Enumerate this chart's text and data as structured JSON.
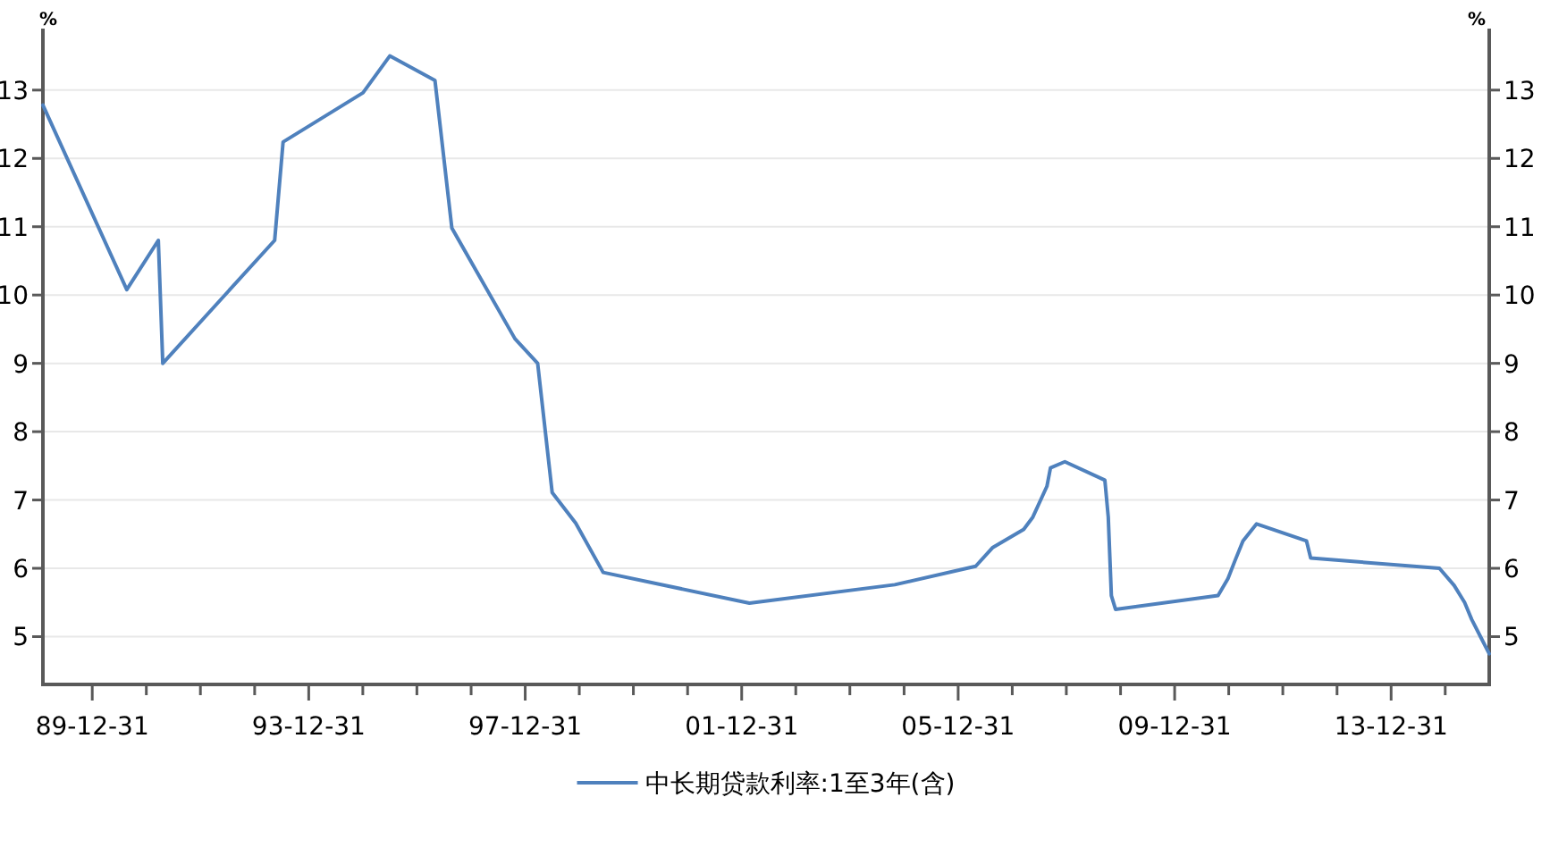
{
  "chart_data": {
    "type": "line",
    "ylabel": "%",
    "y2label": "%",
    "x": [
      "1989-02-01",
      "1990-08-21",
      "1991-03-22",
      "1991-04-21",
      "1993-05-15",
      "1993-07-11",
      "1995-01-01",
      "1995-07-01",
      "1996-05-01",
      "1996-08-23",
      "1997-10-23",
      "1998-03-25",
      "1998-07-01",
      "1998-12-07",
      "1999-06-10",
      "2002-02-21",
      "2004-10-29",
      "2006-04-28",
      "2006-08-19",
      "2007-03-18",
      "2007-05-19",
      "2007-08-22",
      "2007-09-15",
      "2007-12-21",
      "2008-09-16",
      "2008-10-09",
      "2008-10-30",
      "2008-11-27",
      "2010-10-20",
      "2010-12-26",
      "2011-02-09",
      "2011-04-06",
      "2011-07-07",
      "2012-06-08",
      "2012-07-06",
      "2014-11-22",
      "2015-03-01",
      "2015-05-11",
      "2015-06-28",
      "2015-08-26",
      "2015-10-24"
    ],
    "series": [
      {
        "name": "中长期贷款利率:1至3年(含)",
        "color": "#4f81bd",
        "values": [
          12.78,
          10.08,
          10.8,
          9.0,
          10.8,
          12.24,
          12.96,
          13.5,
          13.14,
          10.98,
          9.36,
          9.0,
          7.11,
          6.66,
          5.94,
          5.49,
          5.76,
          6.03,
          6.3,
          6.57,
          6.75,
          7.2,
          7.47,
          7.56,
          7.29,
          6.75,
          5.6,
          5.4,
          5.6,
          5.85,
          6.1,
          6.4,
          6.65,
          6.4,
          6.15,
          6.0,
          5.75,
          5.5,
          5.25,
          5.0,
          4.75
        ]
      }
    ],
    "xlim": [
      "1989-02-01",
      "2015-10-24"
    ],
    "xticks": [
      {
        "value": "1989-12-31",
        "label": "89-12-31"
      },
      {
        "value": "1990-12-31",
        "label": null
      },
      {
        "value": "1991-12-31",
        "label": null
      },
      {
        "value": "1992-12-31",
        "label": null
      },
      {
        "value": "1993-12-31",
        "label": "93-12-31"
      },
      {
        "value": "1994-12-31",
        "label": null
      },
      {
        "value": "1995-12-31",
        "label": null
      },
      {
        "value": "1996-12-31",
        "label": null
      },
      {
        "value": "1997-12-31",
        "label": "97-12-31"
      },
      {
        "value": "1998-12-31",
        "label": null
      },
      {
        "value": "1999-12-31",
        "label": null
      },
      {
        "value": "2000-12-31",
        "label": null
      },
      {
        "value": "2001-12-31",
        "label": "01-12-31"
      },
      {
        "value": "2002-12-31",
        "label": null
      },
      {
        "value": "2003-12-31",
        "label": null
      },
      {
        "value": "2004-12-31",
        "label": null
      },
      {
        "value": "2005-12-31",
        "label": "05-12-31"
      },
      {
        "value": "2006-12-31",
        "label": null
      },
      {
        "value": "2007-12-31",
        "label": null
      },
      {
        "value": "2008-12-31",
        "label": null
      },
      {
        "value": "2009-12-31",
        "label": "09-12-31"
      },
      {
        "value": "2010-12-31",
        "label": null
      },
      {
        "value": "2011-12-31",
        "label": null
      },
      {
        "value": "2012-12-31",
        "label": null
      },
      {
        "value": "2013-12-31",
        "label": "13-12-31"
      },
      {
        "value": "2014-12-31",
        "label": null
      }
    ],
    "ylim": [
      4.3,
      13.9
    ],
    "yticks": [
      5,
      6,
      7,
      8,
      9,
      10,
      11,
      12,
      13
    ],
    "y2lim": [
      4.3,
      13.9
    ],
    "y2ticks": [
      5,
      6,
      7,
      8,
      9,
      10,
      11,
      12,
      13
    ],
    "grid": "y",
    "legend": "bottom",
    "marker": "none",
    "line_style": "solid"
  }
}
